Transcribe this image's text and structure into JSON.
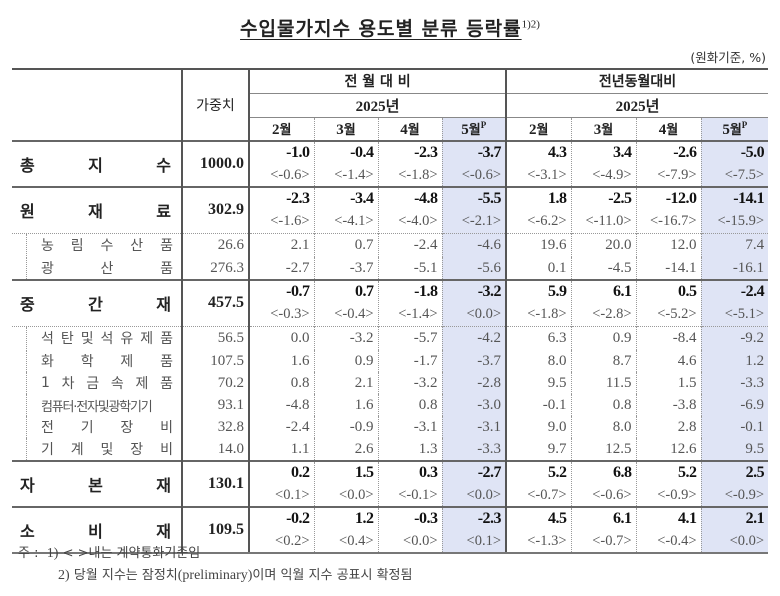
{
  "title": "수입물가지수 용도별 분류 등락률",
  "title_sup": "1)2)",
  "unit": "(원화기준, %)",
  "header": {
    "weight": "가중치",
    "group1": "전 월 대 비",
    "group2": "전년동월대비",
    "year1": "2025년",
    "year2": "2025년",
    "months": [
      {
        "num": "2",
        "k": "월",
        "sup": ""
      },
      {
        "num": "3",
        "k": "월",
        "sup": ""
      },
      {
        "num": "4",
        "k": "월",
        "sup": ""
      },
      {
        "num": "5",
        "k": "월",
        "sup": "P"
      },
      {
        "num": "2",
        "k": "월",
        "sup": ""
      },
      {
        "num": "3",
        "k": "월",
        "sup": ""
      },
      {
        "num": "4",
        "k": "월",
        "sup": ""
      },
      {
        "num": "5",
        "k": "월",
        "sup": "P"
      }
    ]
  },
  "rows": {
    "total": {
      "label": [
        "총",
        "지",
        "수"
      ],
      "weight": "1000.0",
      "values": [
        "-1.0",
        "-0.4",
        "-2.3",
        "-3.7",
        "4.3",
        "3.4",
        "-2.6",
        "-5.0"
      ],
      "contract": [
        "<-0.6>",
        "<-1.4>",
        "<-1.8>",
        "<-0.6>",
        "<-3.1>",
        "<-4.9>",
        "<-7.9>",
        "<-7.5>"
      ]
    },
    "raw": {
      "label": [
        "원",
        "재",
        "료"
      ],
      "weight": "302.9",
      "values": [
        "-2.3",
        "-3.4",
        "-4.8",
        "-5.5",
        "1.8",
        "-2.5",
        "-12.0",
        "-14.1"
      ],
      "contract": [
        "<-1.6>",
        "<-4.1>",
        "<-4.0>",
        "<-2.1>",
        "<-6.2>",
        "<-11.0>",
        "<-16.7>",
        "<-15.9>"
      ],
      "subs": [
        {
          "label": [
            "농",
            "림",
            "수",
            "산",
            "품"
          ],
          "weight": "26.6",
          "values": [
            "2.1",
            "0.7",
            "-2.4",
            "-4.6",
            "19.6",
            "20.0",
            "12.0",
            "7.4"
          ]
        },
        {
          "label": [
            "광",
            "산",
            "품"
          ],
          "weight": "276.3",
          "values": [
            "-2.7",
            "-3.7",
            "-5.1",
            "-5.6",
            "0.1",
            "-4.5",
            "-14.1",
            "-16.1"
          ]
        }
      ]
    },
    "intermediate": {
      "label": [
        "중",
        "간",
        "재"
      ],
      "weight": "457.5",
      "values": [
        "-0.7",
        "0.7",
        "-1.8",
        "-3.2",
        "5.9",
        "6.1",
        "0.5",
        "-2.4"
      ],
      "contract": [
        "<-0.3>",
        "<-0.4>",
        "<-1.4>",
        "<0.0>",
        "<-1.8>",
        "<-2.8>",
        "<-5.2>",
        "<-5.1>"
      ],
      "subs": [
        {
          "label": [
            "석",
            "탄",
            "및",
            "석",
            "유",
            "제",
            "품"
          ],
          "weight": "56.5",
          "values": [
            "0.0",
            "-3.2",
            "-5.7",
            "-4.2",
            "6.3",
            "0.9",
            "-8.4",
            "-9.2"
          ]
        },
        {
          "label": [
            "화",
            "학",
            "제",
            "품"
          ],
          "weight": "107.5",
          "values": [
            "1.6",
            "0.9",
            "-1.7",
            "-3.7",
            "8.0",
            "8.7",
            "4.6",
            "1.2"
          ]
        },
        {
          "label": [
            "1",
            "차",
            "금",
            "속",
            "제",
            "품"
          ],
          "weight": "70.2",
          "values": [
            "0.8",
            "2.1",
            "-3.2",
            "-2.8",
            "9.5",
            "11.5",
            "1.5",
            "-3.3"
          ]
        },
        {
          "label": [
            "컴퓨터·전자및광학기기"
          ],
          "weight": "93.1",
          "values": [
            "-4.8",
            "1.6",
            "0.8",
            "-3.0",
            "-0.1",
            "0.8",
            "-3.8",
            "-6.9"
          ]
        },
        {
          "label": [
            "전",
            "기",
            "장",
            "비"
          ],
          "weight": "32.8",
          "values": [
            "-2.4",
            "-0.9",
            "-3.1",
            "-3.1",
            "9.0",
            "8.0",
            "2.8",
            "-0.1"
          ]
        },
        {
          "label": [
            "기",
            "계",
            "및",
            "장",
            "비"
          ],
          "weight": "14.0",
          "values": [
            "1.1",
            "2.6",
            "1.3",
            "-3.3",
            "9.7",
            "12.5",
            "12.6",
            "9.5"
          ]
        }
      ]
    },
    "capital": {
      "label": [
        "자",
        "본",
        "재"
      ],
      "weight": "130.1",
      "values": [
        "0.2",
        "1.5",
        "0.3",
        "-2.7",
        "5.2",
        "6.8",
        "5.2",
        "2.5"
      ],
      "contract": [
        "<0.1>",
        "<0.0>",
        "<-0.1>",
        "<0.0>",
        "<-0.7>",
        "<-0.6>",
        "<-0.9>",
        "<-0.9>"
      ]
    },
    "consumer": {
      "label": [
        "소",
        "비",
        "재"
      ],
      "weight": "109.5",
      "values": [
        "-0.2",
        "1.2",
        "-0.3",
        "-2.3",
        "4.5",
        "6.1",
        "4.1",
        "2.1"
      ],
      "contract": [
        "<0.2>",
        "<0.4>",
        "<0.0>",
        "<0.1>",
        "<-1.3>",
        "<-0.7>",
        "<-0.4>",
        "<0.0>"
      ]
    }
  },
  "notes": {
    "prefix": "주 :",
    "n1_num": "1)",
    "n1": "< >내는 계약통화기준임",
    "n2_num": "2)",
    "n2_a": "당월 지수는 잠정치",
    "n2_lat": "(preliminary)",
    "n2_b": "이며 익월 지수 공표시 확정됨"
  },
  "colors": {
    "highlight": "#dfe4f5",
    "rule": "#555555"
  }
}
